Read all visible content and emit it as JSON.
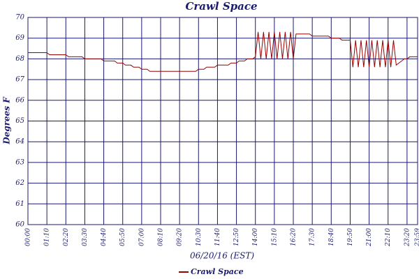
{
  "chart_data": {
    "type": "line",
    "title": "Crawl Space",
    "x_label": "06/20/16 (EST)",
    "y_label": "Degrees F",
    "xlim": [
      0,
      1439
    ],
    "xticks": [
      {
        "value": 0,
        "label": "00:00"
      },
      {
        "value": 70,
        "label": "01:10"
      },
      {
        "value": 140,
        "label": "02:20"
      },
      {
        "value": 210,
        "label": "03:30"
      },
      {
        "value": 280,
        "label": "04:40"
      },
      {
        "value": 350,
        "label": "05:50"
      },
      {
        "value": 420,
        "label": "07:00"
      },
      {
        "value": 490,
        "label": "08:10"
      },
      {
        "value": 560,
        "label": "09:20"
      },
      {
        "value": 630,
        "label": "10:30"
      },
      {
        "value": 700,
        "label": "11:40"
      },
      {
        "value": 770,
        "label": "12:50"
      },
      {
        "value": 840,
        "label": "14:00"
      },
      {
        "value": 910,
        "label": "15:10"
      },
      {
        "value": 980,
        "label": "16:20"
      },
      {
        "value": 1050,
        "label": "17:30"
      },
      {
        "value": 1120,
        "label": "18:40"
      },
      {
        "value": 1190,
        "label": "19:50"
      },
      {
        "value": 1260,
        "label": "21:00"
      },
      {
        "value": 1330,
        "label": "22:10"
      },
      {
        "value": 1400,
        "label": "23:20"
      },
      {
        "value": 1439,
        "label": "23:59"
      }
    ],
    "ylim": [
      60,
      70
    ],
    "yticks": [
      60,
      61,
      62,
      63,
      64,
      65,
      66,
      67,
      68,
      69,
      70
    ],
    "grid": true,
    "legend": "bottom",
    "x": [
      0,
      10,
      20,
      30,
      40,
      50,
      60,
      70,
      80,
      90,
      100,
      110,
      120,
      130,
      140,
      150,
      160,
      170,
      180,
      190,
      200,
      210,
      220,
      230,
      240,
      250,
      260,
      270,
      280,
      290,
      300,
      310,
      320,
      330,
      340,
      350,
      360,
      370,
      380,
      390,
      400,
      410,
      420,
      430,
      440,
      450,
      460,
      470,
      480,
      490,
      500,
      510,
      520,
      530,
      540,
      550,
      560,
      570,
      580,
      590,
      600,
      610,
      620,
      630,
      640,
      650,
      660,
      670,
      680,
      690,
      700,
      710,
      720,
      730,
      740,
      750,
      760,
      770,
      780,
      790,
      800,
      810,
      820,
      830,
      840,
      850,
      860,
      870,
      880,
      890,
      900,
      910,
      920,
      930,
      940,
      950,
      960,
      970,
      980,
      990,
      1000,
      1010,
      1020,
      1030,
      1040,
      1050,
      1060,
      1070,
      1080,
      1090,
      1100,
      1110,
      1120,
      1130,
      1140,
      1150,
      1160,
      1170,
      1180,
      1190,
      1200,
      1210,
      1220,
      1230,
      1240,
      1250,
      1260,
      1270,
      1280,
      1290,
      1300,
      1310,
      1320,
      1330,
      1340,
      1350,
      1360,
      1370,
      1380,
      1390,
      1400,
      1410,
      1420,
      1430,
      1439
    ],
    "series": [
      {
        "name": "Crawl Space",
        "color": "#990000",
        "values": [
          68.3,
          68.3,
          68.3,
          68.3,
          68.3,
          68.3,
          68.3,
          68.3,
          68.2,
          68.2,
          68.2,
          68.2,
          68.2,
          68.2,
          68.2,
          68.1,
          68.1,
          68.1,
          68.1,
          68.1,
          68.1,
          68.0,
          68.0,
          68.0,
          68.0,
          68.0,
          68.0,
          68.0,
          67.9,
          67.9,
          67.9,
          67.9,
          67.9,
          67.8,
          67.8,
          67.8,
          67.7,
          67.7,
          67.7,
          67.6,
          67.6,
          67.6,
          67.5,
          67.5,
          67.5,
          67.4,
          67.4,
          67.4,
          67.4,
          67.4,
          67.4,
          67.4,
          67.4,
          67.4,
          67.4,
          67.4,
          67.4,
          67.4,
          67.4,
          67.4,
          67.4,
          67.4,
          67.4,
          67.5,
          67.5,
          67.5,
          67.6,
          67.6,
          67.6,
          67.6,
          67.7,
          67.7,
          67.7,
          67.7,
          67.7,
          67.8,
          67.8,
          67.8,
          67.9,
          67.9,
          67.9,
          68.0,
          68.0,
          68.0,
          68.1,
          69.3,
          68.0,
          69.3,
          68.0,
          69.3,
          68.0,
          69.3,
          68.0,
          69.3,
          68.0,
          69.3,
          68.0,
          69.3,
          68.0,
          69.2,
          69.2,
          69.2,
          69.2,
          69.2,
          69.2,
          69.1,
          69.1,
          69.1,
          69.1,
          69.1,
          69.1,
          69.1,
          69.0,
          69.0,
          69.0,
          69.0,
          68.9,
          68.9,
          68.9,
          68.9,
          67.6,
          68.9,
          67.6,
          68.9,
          67.6,
          68.9,
          67.6,
          68.9,
          67.6,
          68.9,
          67.6,
          68.9,
          67.6,
          68.9,
          67.6,
          68.9,
          67.7,
          67.8,
          67.9,
          68.0,
          68.0,
          68.1,
          68.1,
          68.1,
          68.1
        ]
      }
    ]
  }
}
